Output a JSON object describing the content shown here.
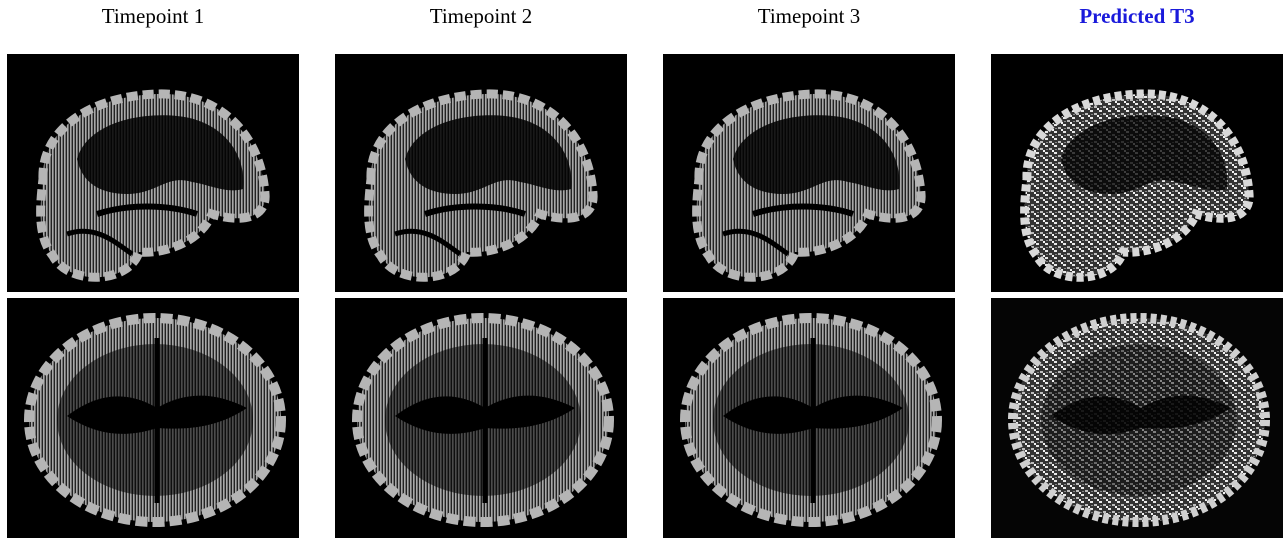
{
  "header": {
    "columns": [
      "Timepoint 1",
      "Timepoint 2",
      "Timepoint 3",
      "Predicted T3"
    ]
  }
}
